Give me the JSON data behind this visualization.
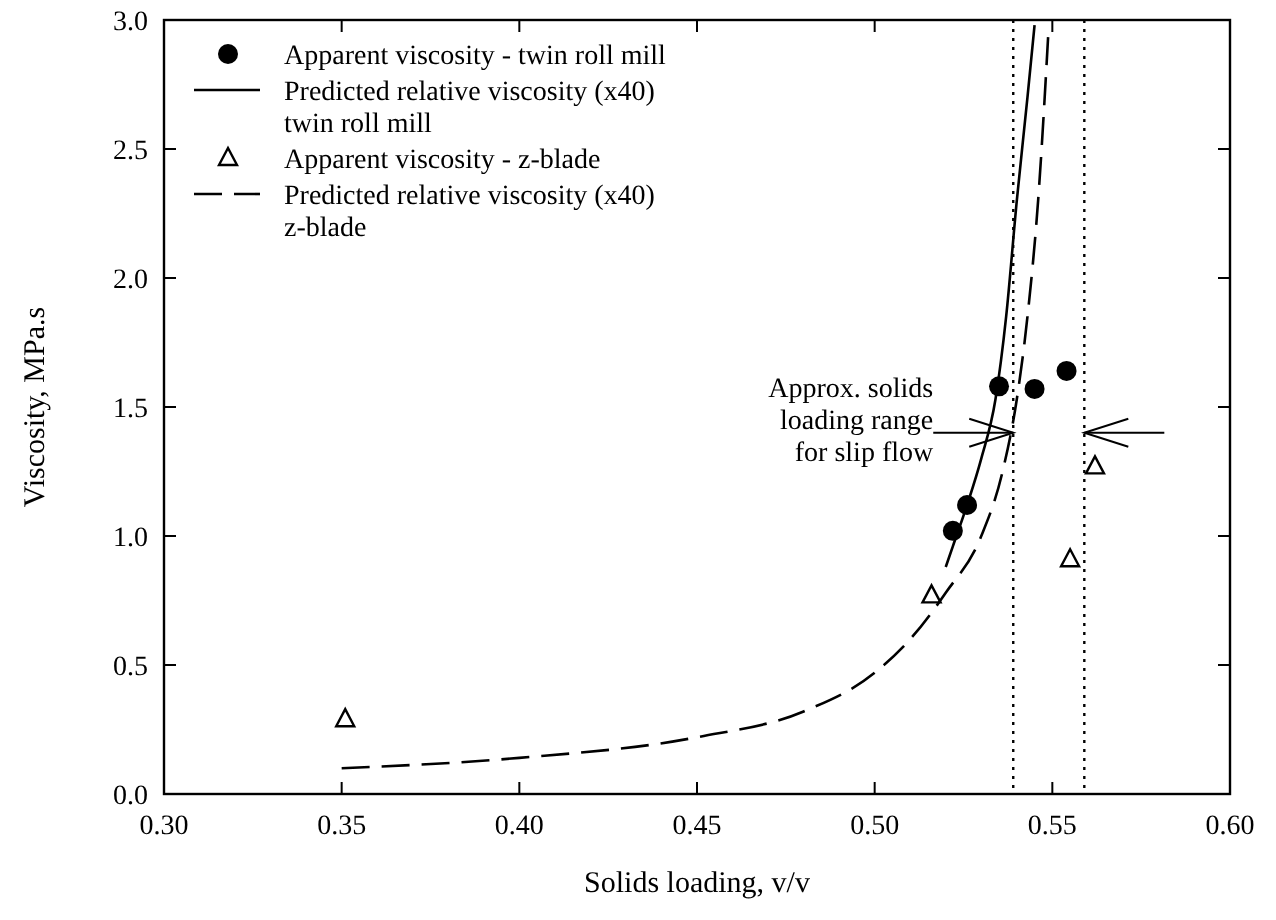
{
  "chart_data": {
    "type": "scatter",
    "xlabel": "Solids loading, v/v",
    "ylabel": "Viscosity, MPa.s",
    "xlim": [
      0.3,
      0.6
    ],
    "xticks": [
      {
        "value": 0.3,
        "label": "0.30"
      },
      {
        "value": 0.35,
        "label": "0.35"
      },
      {
        "value": 0.4,
        "label": "0.40"
      },
      {
        "value": 0.45,
        "label": "0.45"
      },
      {
        "value": 0.5,
        "label": "0.50"
      },
      {
        "value": 0.55,
        "label": "0.55"
      },
      {
        "value": 0.6,
        "label": "0.60"
      }
    ],
    "ylim": [
      0,
      3
    ],
    "yticks": [
      {
        "value": 0,
        "label": "0.0"
      },
      {
        "value": 0.5,
        "label": "0.5"
      },
      {
        "value": 1,
        "label": "1.0"
      },
      {
        "value": 1.5,
        "label": "1.5"
      },
      {
        "value": 2,
        "label": "2.0"
      },
      {
        "value": 2.5,
        "label": "2.5"
      },
      {
        "value": 3,
        "label": "3.0"
      }
    ],
    "grid": false,
    "legend": "top left",
    "series": [
      {
        "name": "Apparent viscosity - twin roll mill",
        "marker": "circle",
        "color": "#000000",
        "x": [
          0.522,
          0.526,
          0.535,
          0.545,
          0.554
        ],
        "values": [
          1.02,
          1.12,
          1.58,
          1.57,
          1.64
        ]
      },
      {
        "name": "Predicted relative viscosity (x40)\ntwin roll mill",
        "type": "line",
        "line_style": "solid",
        "color": "#000000",
        "x": [
          0.52,
          0.522,
          0.526,
          0.53,
          0.534,
          0.537,
          0.54,
          0.543,
          0.545
        ],
        "values": [
          0.88,
          0.96,
          1.12,
          1.3,
          1.53,
          1.85,
          2.3,
          2.7,
          2.98
        ]
      },
      {
        "name": "Apparent viscosity - z-blade",
        "marker": "triangle",
        "color": "#000000",
        "x": [
          0.351,
          0.516,
          0.555,
          0.562
        ],
        "values": [
          0.29,
          0.77,
          0.91,
          1.27
        ]
      },
      {
        "name": "Predicted relative viscosity (x40)\nz-blade",
        "type": "line",
        "line_style": "dashed",
        "color": "#000000",
        "x": [
          0.35,
          0.4,
          0.45,
          0.48,
          0.5,
          0.51,
          0.52,
          0.53,
          0.536,
          0.54,
          0.543,
          0.546,
          0.549
        ],
        "values": [
          0.1,
          0.14,
          0.22,
          0.32,
          0.47,
          0.6,
          0.78,
          1.0,
          1.25,
          1.53,
          1.85,
          2.3,
          2.98
        ]
      }
    ],
    "ref_lines": [
      {
        "axis": "x",
        "value": 0.539,
        "line_style": "dotted"
      },
      {
        "axis": "x",
        "value": 0.559,
        "line_style": "dotted"
      }
    ],
    "annotations": [
      {
        "text": "Approx. solids\nloading range\nfor slip flow",
        "x": 0.539,
        "y": 1.4
      }
    ]
  }
}
